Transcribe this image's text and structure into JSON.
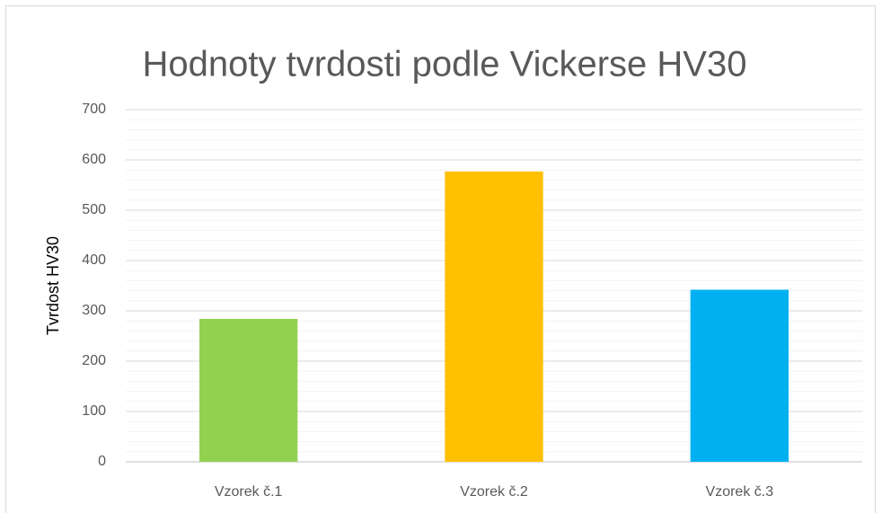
{
  "chart_data": {
    "type": "bar",
    "title": "Hodnoty tvrdosti podle Vickerse HV30",
    "y_label": "Tvrdost HV30",
    "categories": [
      "Vzorek č.1",
      "Vzorek č.2",
      "Vzorek č.3"
    ],
    "values": [
      284,
      577,
      342
    ],
    "colors": [
      "#92d050",
      "#ffc000",
      "#00b0f0"
    ],
    "ylim": [
      0,
      700
    ],
    "yticks": [
      0,
      100,
      200,
      300,
      400,
      500,
      600,
      700
    ],
    "minor_yticks": [
      20,
      40,
      60,
      80,
      120,
      140,
      160,
      180,
      220,
      240,
      260,
      280,
      320,
      340,
      360,
      380,
      420,
      440,
      460,
      480,
      520,
      540,
      560,
      580,
      620,
      640,
      660,
      680
    ],
    "grid": true
  }
}
